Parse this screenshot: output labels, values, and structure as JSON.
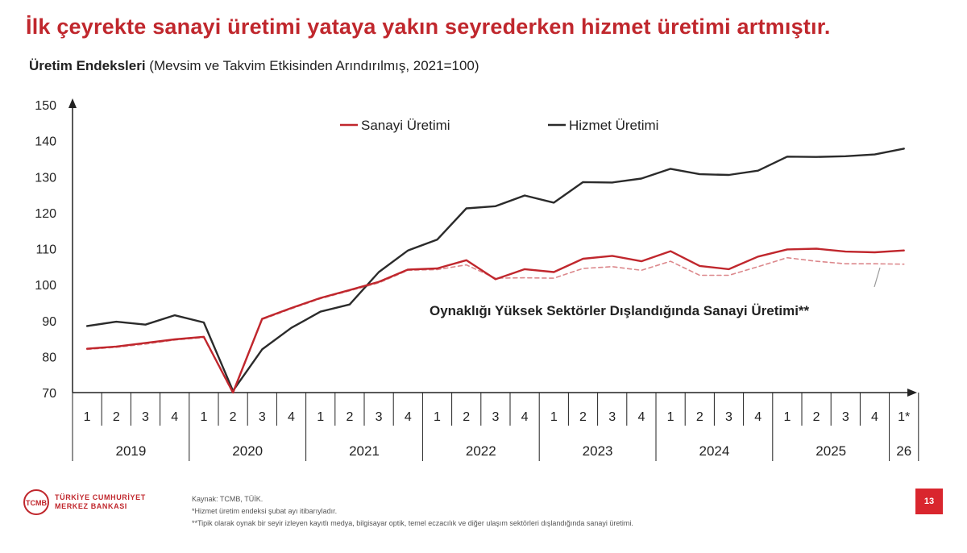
{
  "header": {
    "headline": "İlk çeyrekte sanayi üretimi yataya yakın seyrederken hizmet üretimi artmıştır.",
    "subtitle_bold": "Üretim Endeksleri",
    "subtitle_rest": " (Mevsim ve Takvim Etkisinden Arındırılmış, 2021=100)"
  },
  "chart_data": {
    "type": "line",
    "ylim": [
      70,
      150
    ],
    "yticks": [
      70,
      80,
      90,
      100,
      110,
      120,
      130,
      140,
      150
    ],
    "quarters": [
      "1",
      "2",
      "3",
      "4",
      "1",
      "2",
      "3",
      "4",
      "1",
      "2",
      "3",
      "4",
      "1",
      "2",
      "3",
      "4",
      "1",
      "2",
      "3",
      "4",
      "1",
      "2",
      "3",
      "4",
      "1",
      "2",
      "3",
      "4",
      "1*"
    ],
    "years": [
      {
        "label": "2019",
        "start": 0,
        "count": 4
      },
      {
        "label": "2020",
        "start": 4,
        "count": 4
      },
      {
        "label": "2021",
        "start": 8,
        "count": 4
      },
      {
        "label": "2022",
        "start": 12,
        "count": 4
      },
      {
        "label": "2023",
        "start": 16,
        "count": 4
      },
      {
        "label": "2024",
        "start": 20,
        "count": 4
      },
      {
        "label": "2025",
        "start": 24,
        "count": 4
      },
      {
        "label": "26",
        "start": 28,
        "count": 1
      }
    ],
    "series": [
      {
        "name": "Hizmet Üretimi",
        "color": "#2b2b2b",
        "dashed": false,
        "values": [
          88.5,
          89.7,
          88.9,
          91.5,
          89.5,
          70.5,
          82,
          88,
          92.5,
          94.5,
          103.5,
          109.5,
          112.5,
          121.2,
          121.8,
          124.8,
          122.8,
          128.5,
          128.4,
          129.5,
          132.2,
          130.7,
          130.5,
          131.7,
          135.6,
          135.5,
          135.7,
          136.2,
          137.8
        ]
      },
      {
        "name": "Sanayi Üretimi",
        "color": "#c0272d",
        "dashed": false,
        "values": [
          82.2,
          82.8,
          83.8,
          84.8,
          85.5,
          70,
          90.5,
          93.5,
          96.3,
          98.5,
          100.8,
          104.2,
          104.5,
          106.8,
          101.5,
          104.3,
          103.5,
          107.2,
          108,
          106.5,
          109.3,
          105.2,
          104.3,
          107.8,
          109.8,
          110,
          109.2,
          109,
          109.5
        ]
      },
      {
        "name": "",
        "color": "#c0272d",
        "dashed": true,
        "values": [
          82,
          82.6,
          83.5,
          84.6,
          85.3,
          69.8,
          90.3,
          93.3,
          96.1,
          98.3,
          100.5,
          104,
          104.2,
          105.5,
          101.8,
          101.9,
          101.8,
          104.5,
          105,
          104,
          106.5,
          102.6,
          102.6,
          105,
          107.5,
          106.5,
          105.8,
          105.8,
          105.7
        ]
      }
    ],
    "legend": [
      {
        "label": "Sanayi Üretimi",
        "color": "#c0272d"
      },
      {
        "label": "Hizmet Üretimi",
        "color": "#2b2b2b"
      }
    ],
    "annotation": "Oynaklığı Yüksek Sektörler Dışlandığında Sanayi Üretimi**"
  },
  "footer": {
    "logo_line1": "TÜRKİYE CUMHURİYET",
    "logo_line2": "MERKEZ BANKASI",
    "logo_initials": "TCMB",
    "source": "Kaynak: TCMB, TÜİK.",
    "note1": "*Hizmet üretim endeksi şubat ayı itibarıyladır.",
    "note2": "**Tipik olarak oynak bir seyir izleyen kayıtlı medya, bilgisayar optik, temel eczacılık ve diğer ulaşım sektörleri dışlandığında sanayi üretimi.",
    "page": "13"
  }
}
